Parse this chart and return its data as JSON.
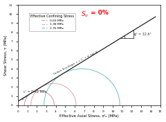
{
  "xlabel": "Effective Axial Stress, σ'ₐ (MPa)",
  "ylabel": "Shear Stress, τ (MPa)",
  "xlim": [
    0,
    15
  ],
  "ylim": [
    0,
    11
  ],
  "xticks": [
    0,
    1,
    2,
    3,
    4,
    5,
    6,
    7,
    8,
    9,
    10,
    11,
    12,
    13,
    14,
    15
  ],
  "yticks": [
    0,
    1,
    2,
    3,
    4,
    5,
    6,
    7,
    8,
    9,
    10,
    11
  ],
  "cohesion": 0.42,
  "phi_deg": 32.6,
  "confining_stresses": [
    0.69,
    1.38,
    2.76
  ],
  "circle_colors": [
    "#d4a0a0",
    "#e0b0b0",
    "#80c8c8"
  ],
  "legend_colors": [
    "#d4a0a0",
    "#e0b0b0",
    "#80c8c8"
  ],
  "legend_labels": [
    "0.69 MPa",
    "1.38 MPa",
    "2.76 MPa"
  ],
  "envelope_color": "#222222",
  "envelope_label": "Failure Envelope: τ = C' + σ' tan φ'",
  "phi_label": "φ' = 32.6°",
  "c_label": "c' = 0.42 MPa",
  "legend_title": "Effective Confining Stress",
  "title_so": "S",
  "title_sub": "o",
  "title_rest": " = 0%",
  "background_color": "#ffffff"
}
